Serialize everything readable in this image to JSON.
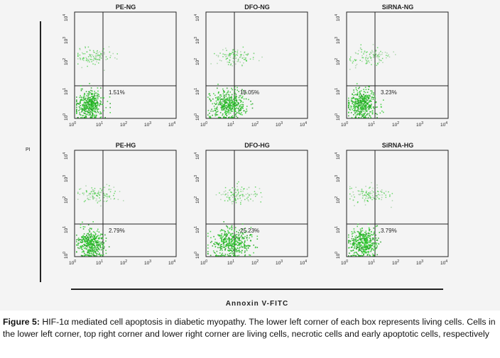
{
  "figure": {
    "y_axis_label": "PI",
    "x_axis_label": "Annoxin V-FITC",
    "tick_labels": [
      "10",
      "10",
      "10",
      "10",
      "10"
    ],
    "tick_exponents": [
      "0",
      "1",
      "2",
      "3",
      "4"
    ],
    "colors": {
      "dots": "#33cc33",
      "dots_dark": "#1e9e1e",
      "frame": "#222222",
      "background": "#f4f4f4"
    },
    "panels": [
      {
        "title": "PE-NG",
        "percent": "1.51%",
        "apoptosis": 1.51
      },
      {
        "title": "DFO-NG",
        "percent": "18.05%",
        "apoptosis": 18.05
      },
      {
        "title": "SiRNA-NG",
        "percent": "3.23%",
        "apoptosis": 3.23
      },
      {
        "title": "PE-HG",
        "percent": "2.79%",
        "apoptosis": 2.79
      },
      {
        "title": "DFO-HG",
        "percent": "25.23%",
        "apoptosis": 25.23
      },
      {
        "title": "SiRNA-HG",
        "percent": "3.79%",
        "apoptosis": 3.79
      }
    ]
  },
  "caption": {
    "label": "Figure 5:",
    "text": "HIF-1α mediated cell apoptosis in diabetic myopathy. The lower left corner of each box represents living cells. Cells in the lower left corner, top right corner and lower right corner are living cells, necrotic cells and early apoptotic cells, respectively"
  }
}
